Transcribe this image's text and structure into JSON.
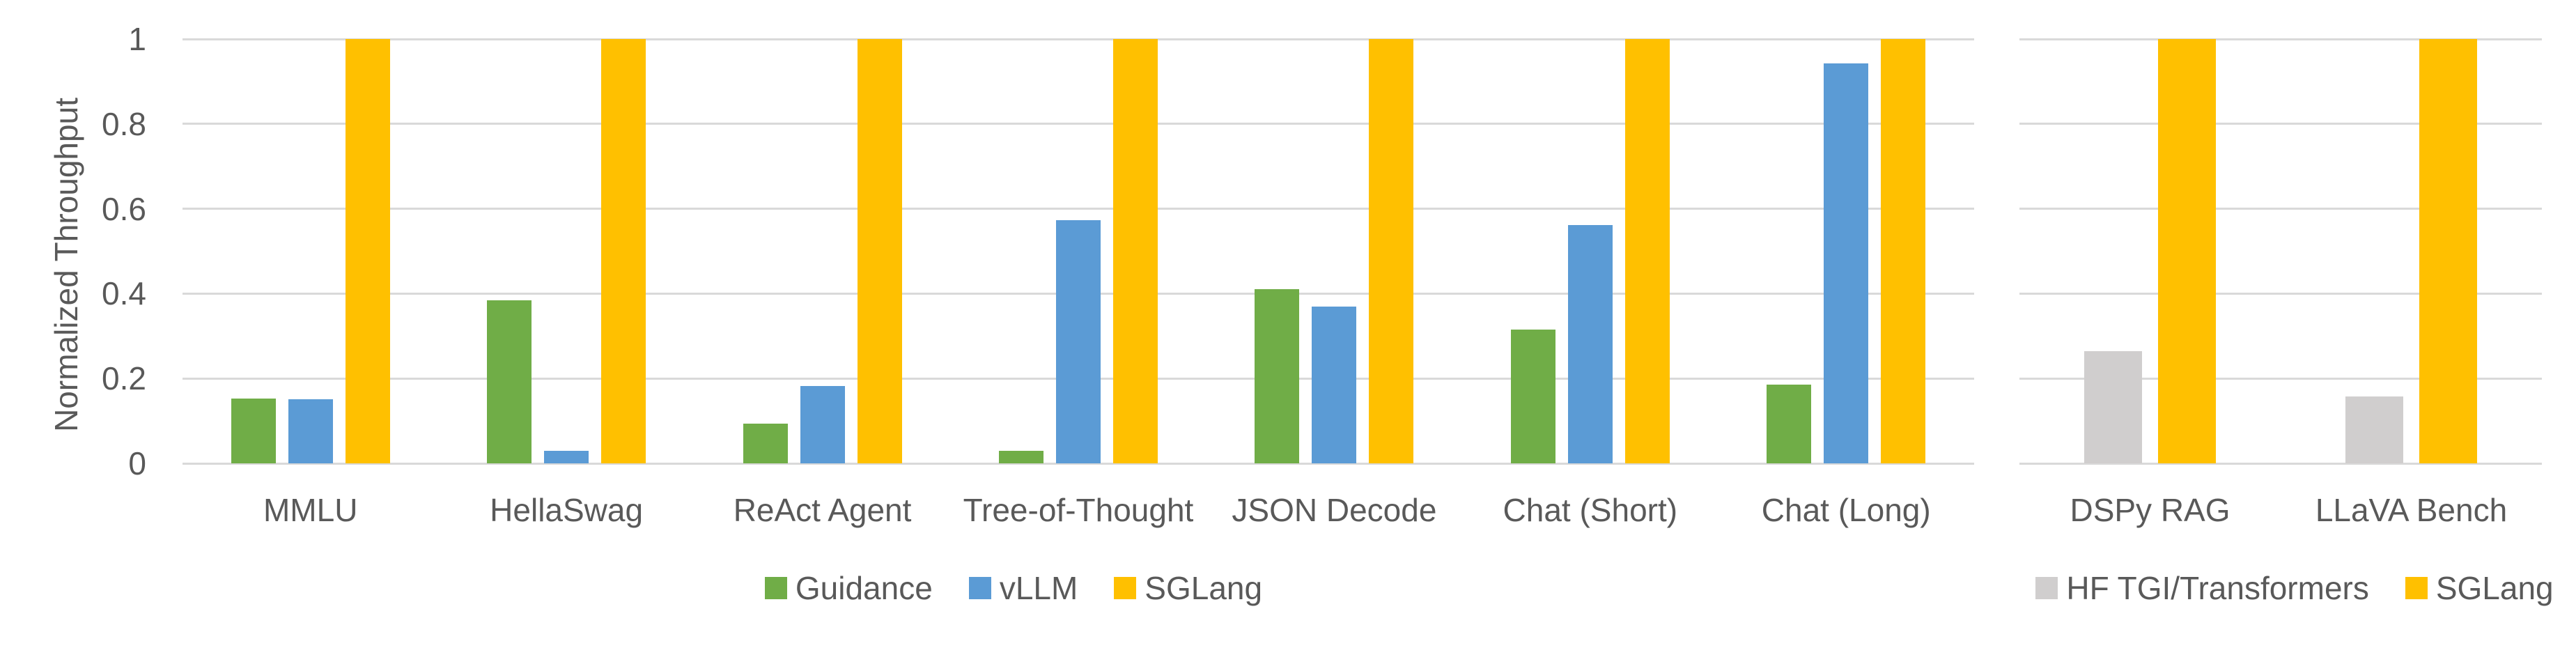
{
  "figure": {
    "background": "#FFFFFF",
    "text_color": "#595959",
    "gridline_color": "#D9D9D9"
  },
  "y_axis": {
    "title": "Normalized Throughput",
    "tick_labels": [
      "1",
      "0.8",
      "0.6",
      "0.4",
      "0.2",
      "0"
    ],
    "min": 0,
    "max": 1
  },
  "chart_data": [
    {
      "type": "bar",
      "title": "",
      "xlabel": "",
      "ylabel": "Normalized Throughput",
      "ylim": [
        0,
        1
      ],
      "yticks": [
        1,
        0.8,
        0.6,
        0.4,
        0.2,
        0
      ],
      "grid": true,
      "legend_position": "bottom",
      "categories": [
        "MMLU",
        "HellaSwag",
        "ReAct Agent",
        "Tree-of-Thought",
        "JSON Decode",
        "Chat (Short)",
        "Chat (Long)"
      ],
      "series": [
        {
          "name": "Guidance",
          "color": "#70AD47",
          "values": [
            0.152,
            0.384,
            0.093,
            0.03,
            0.411,
            0.315,
            0.185
          ]
        },
        {
          "name": "vLLM",
          "color": "#5B9BD5",
          "values": [
            0.151,
            0.03,
            0.182,
            0.573,
            0.37,
            0.562,
            0.942
          ]
        },
        {
          "name": "SGLang",
          "color": "#FFC000",
          "values": [
            1,
            1,
            1,
            1,
            1,
            1,
            1
          ]
        }
      ]
    },
    {
      "type": "bar",
      "title": "",
      "xlabel": "",
      "ylabel": "Normalized Throughput",
      "ylim": [
        0,
        1
      ],
      "yticks": [
        1,
        0.8,
        0.6,
        0.4,
        0.2,
        0
      ],
      "grid": true,
      "legend_position": "bottom",
      "categories": [
        "DSPy RAG",
        "LLaVA Bench"
      ],
      "series": [
        {
          "name": "HF TGI/Transformers",
          "color": "#D0CECE",
          "values": [
            0.265,
            0.157
          ]
        },
        {
          "name": "SGLang",
          "color": "#FFC000",
          "values": [
            1,
            1
          ]
        }
      ]
    }
  ]
}
